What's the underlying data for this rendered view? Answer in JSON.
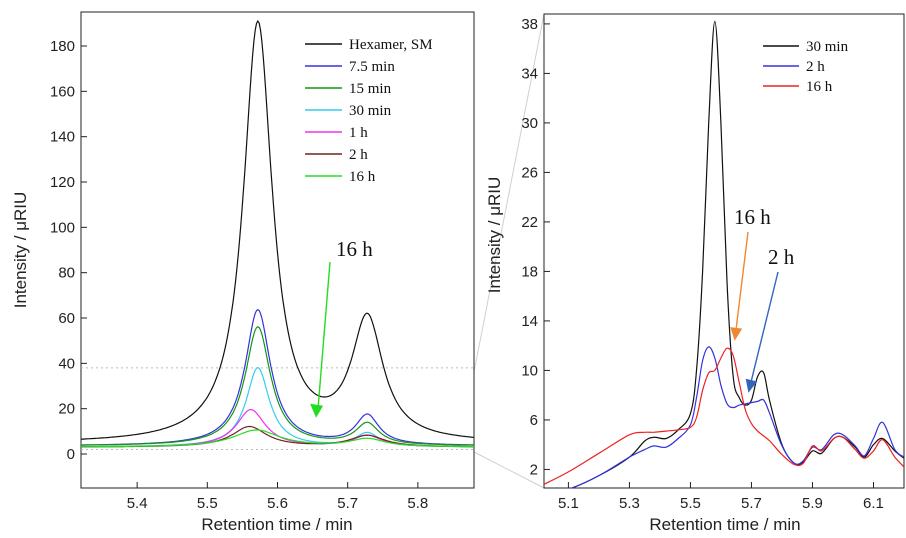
{
  "chart_data": [
    {
      "type": "line",
      "xlabel": "Retention time / min",
      "ylabel": "Intensity / μRIU",
      "xlim": [
        5.32,
        5.88
      ],
      "ylim": [
        -15,
        195
      ],
      "x_ticks": [
        "5.4",
        "5.5",
        "5.6",
        "5.7",
        "5.8"
      ],
      "y_ticks": [
        "0",
        "20",
        "40",
        "60",
        "80",
        "100",
        "120",
        "140",
        "160",
        "180"
      ],
      "legend_position": "top-right",
      "annotation": {
        "text": "16 h",
        "arrow_to": [
          5.655,
          16
        ],
        "color": "#22dd22"
      },
      "series": [
        {
          "name": "Hexamer, SM",
          "color": "#111111",
          "baseline": 4.5,
          "peaks": [
            [
              5.572,
              185,
              0.025
            ],
            [
              5.728,
              53,
              0.027
            ]
          ]
        },
        {
          "name": "7.5 min",
          "color": "#3333dd",
          "baseline": 3.5,
          "peaks": [
            [
              5.572,
              60,
              0.022
            ],
            [
              5.728,
              13,
              0.02
            ]
          ]
        },
        {
          "name": "15 min",
          "color": "#119911",
          "baseline": 3.5,
          "peaks": [
            [
              5.572,
              52.5,
              0.022
            ],
            [
              5.728,
              9.5,
              0.02
            ]
          ]
        },
        {
          "name": "30 min",
          "color": "#33ccee",
          "baseline": 3,
          "peaks": [
            [
              5.572,
              35,
              0.02
            ],
            [
              5.728,
              6,
              0.02
            ]
          ]
        },
        {
          "name": "1 h",
          "color": "#ee33ee",
          "baseline": 3,
          "peaks": [
            [
              5.562,
              16.5,
              0.025
            ],
            [
              5.728,
              5,
              0.025
            ]
          ]
        },
        {
          "name": "2 h",
          "color": "#772222",
          "baseline": 3,
          "peaks": [
            [
              5.56,
              9,
              0.03
            ],
            [
              5.728,
              5,
              0.03
            ]
          ]
        },
        {
          "name": "16 h",
          "color": "#22dd22",
          "baseline": 3,
          "peaks": [
            [
              5.57,
              7.5,
              0.04
            ],
            [
              5.728,
              3.5,
              0.03
            ]
          ]
        }
      ]
    },
    {
      "type": "line",
      "xlabel": "Retention time / min",
      "ylabel": "Intensity / μRIU",
      "xlim": [
        5.02,
        6.2
      ],
      "ylim": [
        0.5,
        38.8
      ],
      "x_ticks": [
        "5.1",
        "5.3",
        "5.5",
        "5.7",
        "5.9",
        "6.1"
      ],
      "y_ticks": [
        "2",
        "6",
        "10",
        "14",
        "18",
        "22",
        "26",
        "30",
        "34",
        "38"
      ],
      "legend_position": "top-right",
      "annotations": [
        {
          "text": "16 h",
          "arrow_to": [
            5.645,
            12.4
          ],
          "color": "#ee8833"
        },
        {
          "text": "2 h",
          "arrow_to": [
            5.69,
            8.2
          ],
          "color": "#3366bb"
        }
      ],
      "series": [
        {
          "name": "30 min",
          "color": "#111111",
          "x": [
            5.04,
            5.1,
            5.2,
            5.3,
            5.35,
            5.38,
            5.42,
            5.46,
            5.5,
            5.52,
            5.54,
            5.56,
            5.58,
            5.6,
            5.62,
            5.64,
            5.66,
            5.68,
            5.7,
            5.72,
            5.74,
            5.76,
            5.8,
            5.84,
            5.87,
            5.9,
            5.93,
            5.97,
            6.0,
            6.04,
            6.07,
            6.1,
            6.13,
            6.17,
            6.2
          ],
          "y": [
            0.2,
            0.4,
            1.5,
            3.0,
            4.3,
            4.6,
            4.5,
            5.2,
            6.5,
            10.0,
            18.0,
            30.0,
            38.2,
            30.0,
            17.0,
            9.5,
            7.8,
            7.2,
            7.6,
            9.5,
            9.8,
            7.5,
            4.0,
            2.5,
            2.6,
            3.5,
            3.3,
            4.5,
            4.6,
            3.8,
            3.0,
            4.0,
            4.5,
            3.5,
            2.9
          ]
        },
        {
          "name": "2 h",
          "color": "#3333dd",
          "x": [
            5.04,
            5.1,
            5.2,
            5.3,
            5.35,
            5.38,
            5.42,
            5.46,
            5.5,
            5.52,
            5.54,
            5.56,
            5.58,
            5.6,
            5.62,
            5.64,
            5.66,
            5.68,
            5.7,
            5.72,
            5.74,
            5.76,
            5.8,
            5.84,
            5.87,
            5.9,
            5.93,
            5.97,
            6.0,
            6.04,
            6.07,
            6.1,
            6.13,
            6.17,
            6.2
          ],
          "y": [
            0.2,
            0.4,
            1.5,
            3.0,
            3.6,
            3.9,
            3.8,
            4.5,
            5.6,
            7.8,
            10.8,
            11.9,
            11.0,
            8.8,
            7.3,
            7.0,
            7.2,
            7.3,
            7.4,
            7.5,
            7.6,
            6.5,
            3.9,
            2.5,
            2.7,
            3.8,
            3.6,
            4.8,
            4.8,
            3.9,
            3.1,
            4.5,
            5.8,
            3.6,
            3.0
          ]
        },
        {
          "name": "16 h",
          "color": "#ee2222",
          "x": [
            5.02,
            5.1,
            5.2,
            5.3,
            5.35,
            5.38,
            5.42,
            5.46,
            5.5,
            5.52,
            5.54,
            5.56,
            5.58,
            5.6,
            5.62,
            5.64,
            5.66,
            5.68,
            5.7,
            5.72,
            5.74,
            5.76,
            5.8,
            5.84,
            5.87,
            5.9,
            5.93,
            5.97,
            6.0,
            6.04,
            6.07,
            6.1,
            6.13,
            6.17,
            6.2
          ],
          "y": [
            0.8,
            1.8,
            3.3,
            4.8,
            5.0,
            5.0,
            5.1,
            5.2,
            5.4,
            6.2,
            8.4,
            9.8,
            10.0,
            11.0,
            11.8,
            11.2,
            9.0,
            6.8,
            5.7,
            5.1,
            4.7,
            4.3,
            3.2,
            2.4,
            2.5,
            3.9,
            3.5,
            4.5,
            4.6,
            3.6,
            2.9,
            3.5,
            4.4,
            3.0,
            2.2
          ]
        }
      ]
    }
  ]
}
